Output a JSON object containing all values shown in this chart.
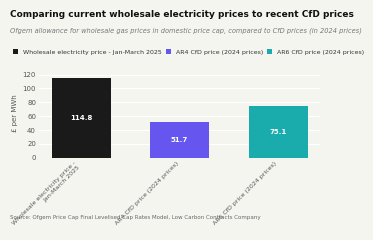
{
  "title": "Comparing current wholesale electricity prices to recent CfD prices",
  "subtitle": "Ofgem allowance for wholesale gas prices in domestic price cap, compared to CfD prices (in 2024 prices)",
  "categories": [
    "Wholesale electricity price -\nJan-March 2025",
    "AR4 CfD price (2024 prices)",
    "AR6 CfD price (2024 prices)"
  ],
  "values": [
    114.8,
    51.7,
    75.1
  ],
  "bar_colors": [
    "#1a1a1a",
    "#6655ee",
    "#1aacac"
  ],
  "ylabel": "£ per MWh",
  "ylim": [
    0,
    130
  ],
  "yticks": [
    0,
    20,
    40,
    60,
    80,
    100,
    120
  ],
  "legend_labels": [
    "Wholesale electricity price - Jan-March 2025",
    "AR4 CfD price (2024 prices)",
    "AR6 CfD price (2024 prices)"
  ],
  "legend_colors": [
    "#1a1a1a",
    "#6655ee",
    "#1aacac"
  ],
  "background_color": "#f5f5f0",
  "title_fontsize": 6.5,
  "subtitle_fontsize": 4.8,
  "legend_fontsize": 4.5,
  "xlabel_fontsize": 4.5,
  "value_fontsize": 5.0,
  "tick_fontsize": 5.0,
  "source_text": "Source: Ofgem Price Cap Final Levelised Cap Rates Model, Low Carbon Contracts Company"
}
